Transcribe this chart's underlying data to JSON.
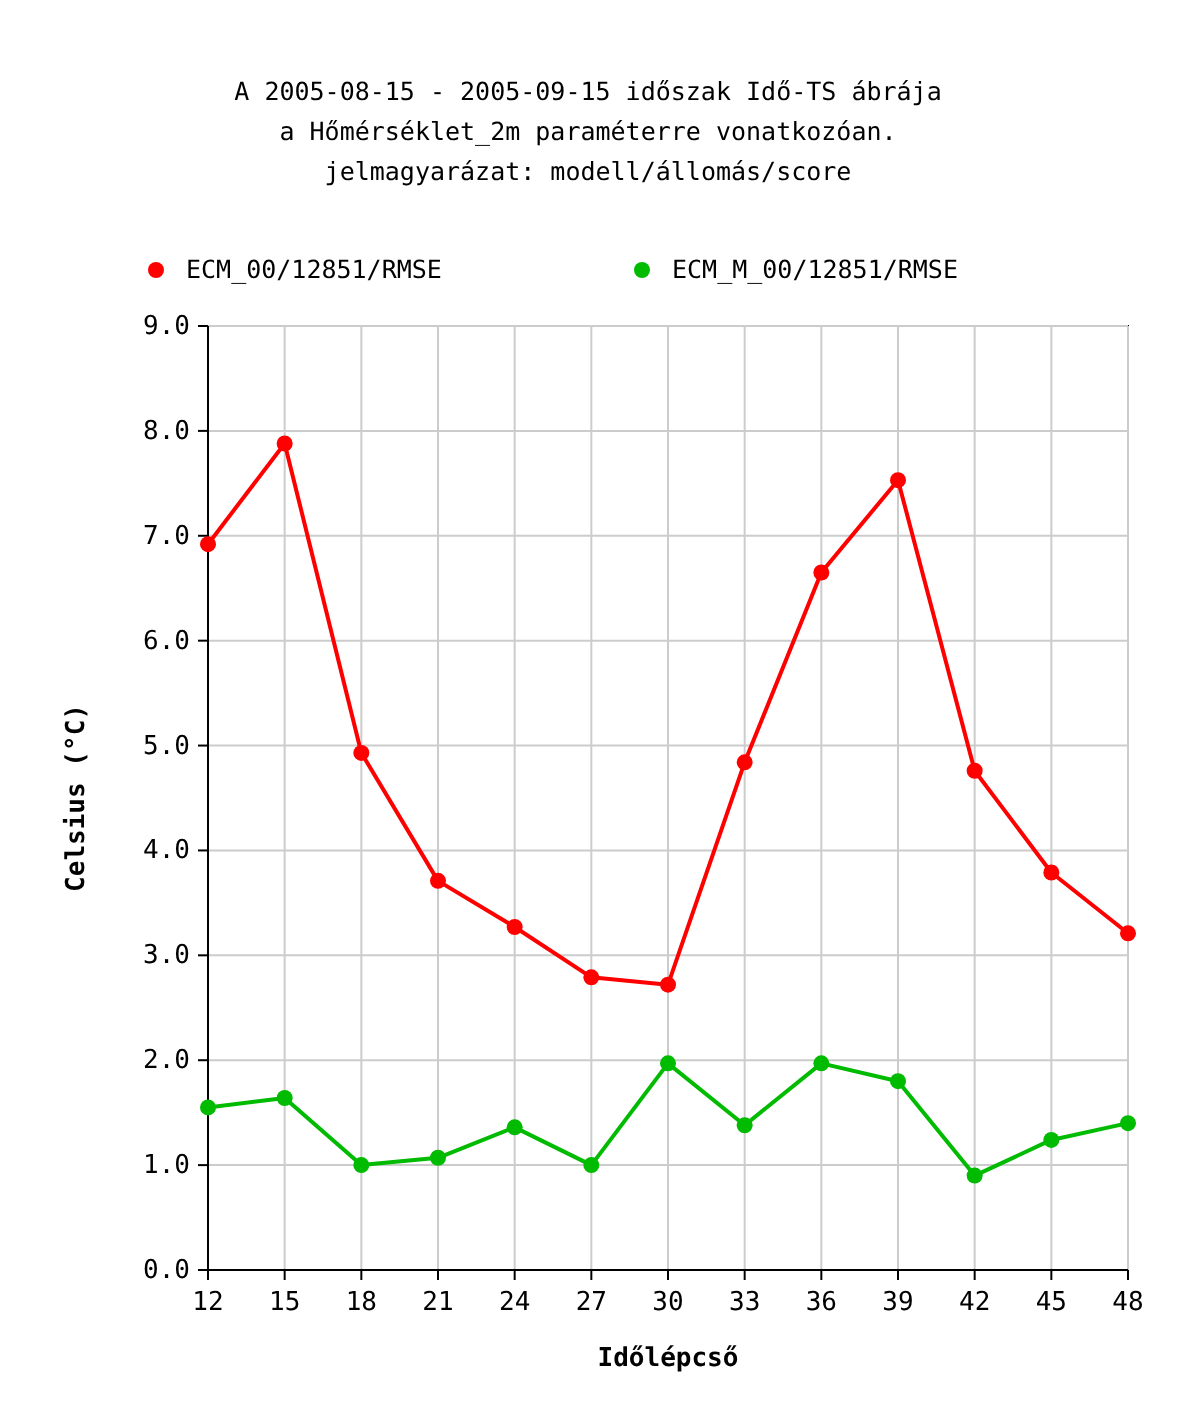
{
  "chart_data": {
    "type": "line",
    "title": "A 2005-08-15 - 2005-09-15 időszak Idő-TS ábrája\na Hőmérséklet_2m paraméterre vonatkozóan.\njelmagyarázat: modell/állomás/score",
    "xlabel": "Időlépcső",
    "ylabel": "Celsius (°C)",
    "x": [
      12,
      15,
      18,
      21,
      24,
      27,
      30,
      33,
      36,
      39,
      42,
      45,
      48
    ],
    "series": [
      {
        "name": "ECM_00/12851/RMSE",
        "color": "#ff0000",
        "values": [
          6.92,
          7.88,
          4.93,
          3.71,
          3.27,
          2.79,
          2.72,
          4.84,
          6.65,
          7.53,
          4.76,
          3.79,
          3.21
        ]
      },
      {
        "name": "ECM_M_00/12851/RMSE",
        "color": "#00bb00",
        "values": [
          1.55,
          1.64,
          1.0,
          1.07,
          1.36,
          1.0,
          1.97,
          1.38,
          1.97,
          1.8,
          0.9,
          1.24,
          1.4
        ]
      }
    ],
    "xlim": [
      12,
      48
    ],
    "xticks": [
      12,
      15,
      18,
      21,
      24,
      27,
      30,
      33,
      36,
      39,
      42,
      45,
      48
    ],
    "ylim": [
      0,
      9
    ],
    "yticks": [
      {
        "value": 0,
        "label": "0.0"
      },
      {
        "value": 1,
        "label": "1.0"
      },
      {
        "value": 2,
        "label": "2.0"
      },
      {
        "value": 3,
        "label": "3.0"
      },
      {
        "value": 4,
        "label": "4.0"
      },
      {
        "value": 5,
        "label": "5.0"
      },
      {
        "value": 6,
        "label": "6.0"
      },
      {
        "value": 7,
        "label": "7.0"
      },
      {
        "value": 8,
        "label": "8.0"
      },
      {
        "value": 9,
        "label": "9.0"
      }
    ],
    "grid": true,
    "legend": "top",
    "marker": "circle",
    "line_style": "solid"
  }
}
